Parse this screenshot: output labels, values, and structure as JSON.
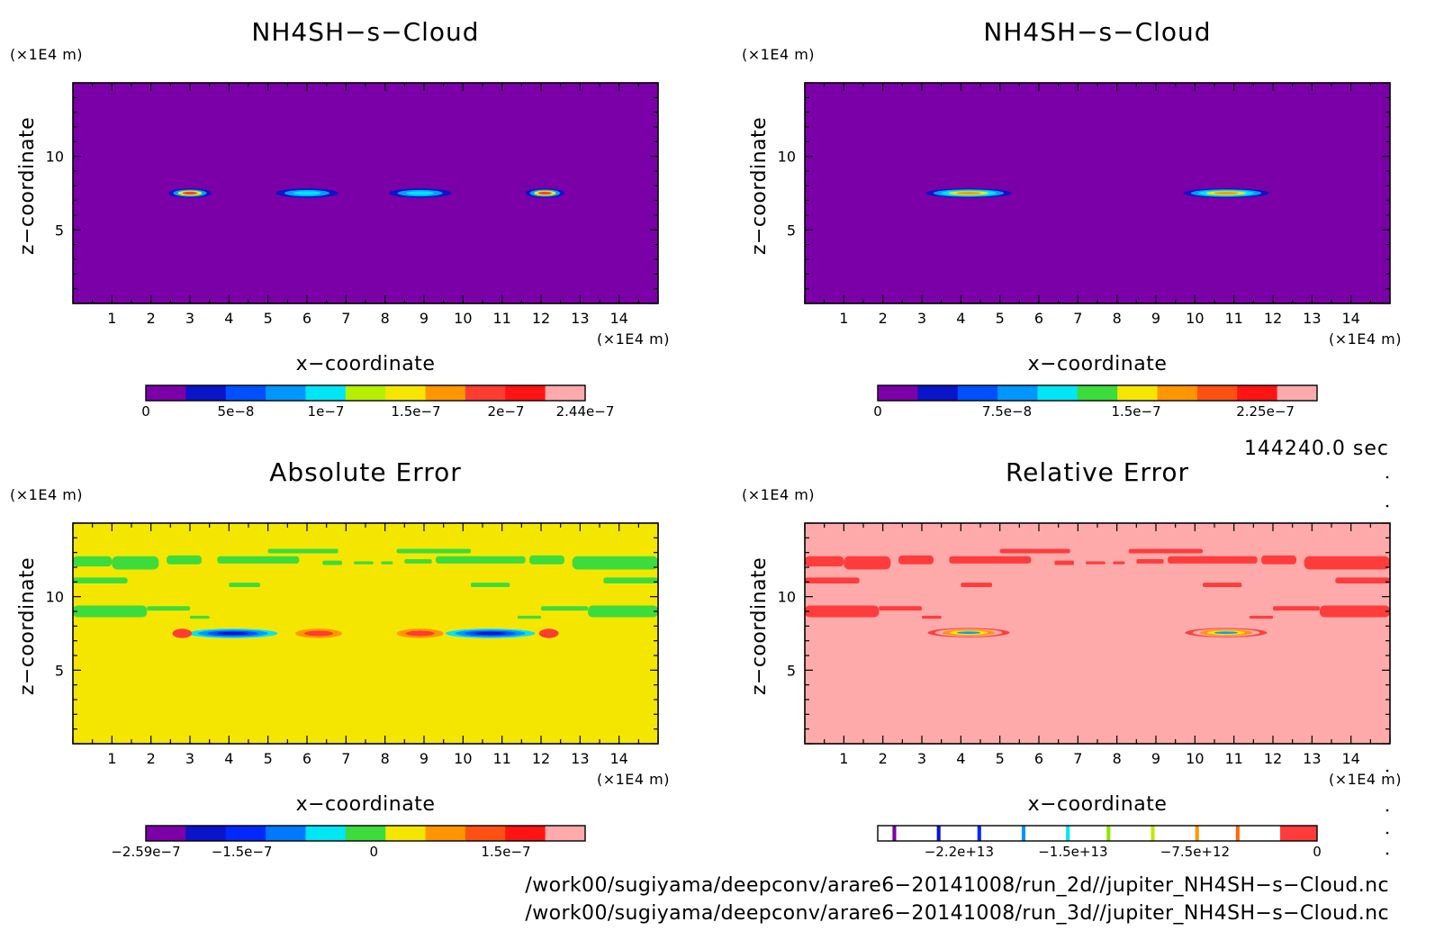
{
  "chart_data": [
    {
      "type": "heatmap",
      "title": "NH4SH−s−Cloud",
      "xlabel": "x−coordinate",
      "ylabel": "z−coordinate",
      "x_unit": "(×1E4 m)",
      "y_unit": "(×1E4 m)",
      "xlim": [
        0,
        15
      ],
      "ylim": [
        0,
        15
      ],
      "x_ticks": [
        1,
        2,
        3,
        4,
        5,
        6,
        7,
        8,
        9,
        10,
        11,
        12,
        13,
        14
      ],
      "y_ticks": [
        5,
        10
      ],
      "background_color": "#7b00a8",
      "features": [
        {
          "x": 3.0,
          "z": 7.5,
          "width": 1.1,
          "level_colors": [
            "#0a14c8",
            "#00a0ff",
            "#f5e600",
            "#ff3c32"
          ]
        },
        {
          "x": 6.0,
          "z": 7.5,
          "width": 1.6,
          "level_colors": [
            "#0a14c8",
            "#00a0ff",
            "#00e6f5"
          ]
        },
        {
          "x": 8.9,
          "z": 7.5,
          "width": 1.6,
          "level_colors": [
            "#0a14c8",
            "#00a0ff",
            "#00e6f5"
          ]
        },
        {
          "x": 12.1,
          "z": 7.5,
          "width": 1.0,
          "level_colors": [
            "#0a14c8",
            "#00a0ff",
            "#f5e600",
            "#ff3c32"
          ]
        }
      ],
      "colorbar": {
        "colors": [
          "#7b00a8",
          "#0a14c8",
          "#0050ff",
          "#0096ff",
          "#00e6f5",
          "#b4f000",
          "#f5e600",
          "#ff9600",
          "#ff3c32",
          "#ff1414",
          "#ffaaaa"
        ],
        "labels": [
          "0",
          "5e−8",
          "1e−7",
          "1.5e−7",
          "2e−7",
          "2.44e−7"
        ],
        "label_values": [
          0,
          5e-08,
          1e-07,
          1.5e-07,
          2e-07,
          2.44e-07
        ],
        "range": [
          0,
          2.44e-07
        ]
      }
    },
    {
      "type": "heatmap",
      "title": "NH4SH−s−Cloud",
      "xlabel": "x−coordinate",
      "ylabel": "z−coordinate",
      "x_unit": "(×1E4 m)",
      "y_unit": "(×1E4 m)",
      "xlim": [
        0,
        15
      ],
      "ylim": [
        0,
        15
      ],
      "x_ticks": [
        1,
        2,
        3,
        4,
        5,
        6,
        7,
        8,
        9,
        10,
        11,
        12,
        13,
        14
      ],
      "y_ticks": [
        5,
        10
      ],
      "background_color": "#7b00a8",
      "features": [
        {
          "x": 4.2,
          "z": 7.5,
          "width": 2.2,
          "level_colors": [
            "#0a14c8",
            "#00a0ff",
            "#00e6f5",
            "#f5e600",
            "#ff9600"
          ]
        },
        {
          "x": 10.8,
          "z": 7.5,
          "width": 2.2,
          "level_colors": [
            "#0a14c8",
            "#00a0ff",
            "#00e6f5",
            "#f5e600",
            "#ff9600"
          ]
        }
      ],
      "colorbar": {
        "colors": [
          "#7b00a8",
          "#0a14c8",
          "#0050ff",
          "#0096ff",
          "#00e6f5",
          "#3cdc3c",
          "#f5e600",
          "#ff9600",
          "#ff5014",
          "#ff1414",
          "#ffaaaa"
        ],
        "labels": [
          "0",
          "7.5e−8",
          "1.5e−7",
          "2.25e−7"
        ],
        "label_values": [
          0,
          7.5e-08,
          1.5e-07,
          2.25e-07
        ],
        "range": [
          0,
          2.55e-07
        ]
      }
    },
    {
      "type": "heatmap",
      "title": "Absolute Error",
      "xlabel": "x−coordinate",
      "ylabel": "z−coordinate",
      "x_unit": "(×1E4 m)",
      "y_unit": "(×1E4 m)",
      "xlim": [
        0,
        15
      ],
      "ylim": [
        0,
        15
      ],
      "x_ticks": [
        1,
        2,
        3,
        4,
        5,
        6,
        7,
        8,
        9,
        10,
        11,
        12,
        13,
        14
      ],
      "y_ticks": [
        5,
        10
      ],
      "background_color": "#f5e600",
      "patch_color": "#3cdc3c",
      "patches": [
        {
          "x0": 0.0,
          "x1": 1.0,
          "z": 12.4,
          "h": 0.7
        },
        {
          "x0": 1.0,
          "x1": 2.2,
          "z": 12.3,
          "h": 0.9
        },
        {
          "x0": 2.4,
          "x1": 3.3,
          "z": 12.5,
          "h": 0.6
        },
        {
          "x0": 3.7,
          "x1": 5.8,
          "z": 12.5,
          "h": 0.5
        },
        {
          "x0": 5.0,
          "x1": 6.8,
          "z": 13.1,
          "h": 0.3
        },
        {
          "x0": 6.4,
          "x1": 6.9,
          "z": 12.3,
          "h": 0.3
        },
        {
          "x0": 7.2,
          "x1": 7.7,
          "z": 12.3,
          "h": 0.2
        },
        {
          "x0": 7.9,
          "x1": 8.2,
          "z": 12.3,
          "h": 0.2
        },
        {
          "x0": 8.3,
          "x1": 10.2,
          "z": 13.1,
          "h": 0.3
        },
        {
          "x0": 8.5,
          "x1": 9.2,
          "z": 12.4,
          "h": 0.3
        },
        {
          "x0": 9.3,
          "x1": 11.6,
          "z": 12.5,
          "h": 0.5
        },
        {
          "x0": 11.7,
          "x1": 12.6,
          "z": 12.5,
          "h": 0.6
        },
        {
          "x0": 12.8,
          "x1": 15.0,
          "z": 12.3,
          "h": 0.9
        },
        {
          "x0": 0.0,
          "x1": 1.4,
          "z": 11.1,
          "h": 0.4
        },
        {
          "x0": 4.0,
          "x1": 4.8,
          "z": 10.8,
          "h": 0.3
        },
        {
          "x0": 10.2,
          "x1": 11.2,
          "z": 10.8,
          "h": 0.3
        },
        {
          "x0": 13.6,
          "x1": 15.0,
          "z": 11.1,
          "h": 0.4
        },
        {
          "x0": 0.0,
          "x1": 1.9,
          "z": 9.0,
          "h": 0.8
        },
        {
          "x0": 1.9,
          "x1": 3.0,
          "z": 9.2,
          "h": 0.3
        },
        {
          "x0": 12.0,
          "x1": 13.2,
          "z": 9.2,
          "h": 0.3
        },
        {
          "x0": 13.2,
          "x1": 15.0,
          "z": 9.0,
          "h": 0.8
        },
        {
          "x0": 3.0,
          "x1": 3.5,
          "z": 8.6,
          "h": 0.2
        },
        {
          "x0": 11.4,
          "x1": 12.0,
          "z": 8.6,
          "h": 0.2
        }
      ],
      "features": [
        {
          "x": 4.1,
          "z": 7.5,
          "width": 2.3,
          "level_colors": [
            "#00e6f5",
            "#0096ff",
            "#0050ff",
            "#0a14c8"
          ]
        },
        {
          "x": 10.7,
          "z": 7.5,
          "width": 2.3,
          "level_colors": [
            "#00e6f5",
            "#0096ff",
            "#0050ff",
            "#0a14c8"
          ]
        },
        {
          "x": 2.8,
          "z": 7.5,
          "width": 0.5,
          "level_colors": [
            "#ff3c32"
          ]
        },
        {
          "x": 6.3,
          "z": 7.5,
          "width": 1.2,
          "level_colors": [
            "#ff9600",
            "#ff3c32"
          ]
        },
        {
          "x": 8.9,
          "z": 7.5,
          "width": 1.2,
          "level_colors": [
            "#ff9600",
            "#ff3c32"
          ]
        },
        {
          "x": 12.2,
          "z": 7.5,
          "width": 0.5,
          "level_colors": [
            "#ff3c32"
          ]
        }
      ],
      "colorbar": {
        "colors": [
          "#7b00a8",
          "#0a14c8",
          "#0028ff",
          "#0078ff",
          "#00e6f5",
          "#3cdc3c",
          "#f5e600",
          "#ff9600",
          "#ff5014",
          "#ff1414",
          "#ffaaaa"
        ],
        "labels": [
          "−2.59e−7",
          "−1.5e−7",
          "0",
          "1.5e−7"
        ],
        "label_values": [
          -2.59e-07,
          -1.5e-07,
          0,
          1.5e-07
        ],
        "range": [
          -2.59e-07,
          2.4e-07
        ]
      }
    },
    {
      "type": "heatmap",
      "title": "Relative Error",
      "xlabel": "x−coordinate",
      "ylabel": "z−coordinate",
      "x_unit": "(×1E4 m)",
      "y_unit": "(×1E4 m)",
      "xlim": [
        0,
        15
      ],
      "ylim": [
        0,
        15
      ],
      "x_ticks": [
        1,
        2,
        3,
        4,
        5,
        6,
        7,
        8,
        9,
        10,
        11,
        12,
        13,
        14
      ],
      "y_ticks": [
        5,
        10
      ],
      "background_color": "#ffaaaa",
      "patch_color": "#ff3c3c",
      "patches": [
        {
          "x0": 0.0,
          "x1": 1.0,
          "z": 12.4,
          "h": 0.7
        },
        {
          "x0": 1.0,
          "x1": 2.2,
          "z": 12.3,
          "h": 0.9
        },
        {
          "x0": 2.4,
          "x1": 3.3,
          "z": 12.5,
          "h": 0.6
        },
        {
          "x0": 3.7,
          "x1": 5.8,
          "z": 12.5,
          "h": 0.5
        },
        {
          "x0": 5.0,
          "x1": 6.8,
          "z": 13.1,
          "h": 0.3
        },
        {
          "x0": 6.4,
          "x1": 6.9,
          "z": 12.3,
          "h": 0.3
        },
        {
          "x0": 7.2,
          "x1": 7.7,
          "z": 12.3,
          "h": 0.2
        },
        {
          "x0": 7.9,
          "x1": 8.2,
          "z": 12.3,
          "h": 0.2
        },
        {
          "x0": 8.3,
          "x1": 10.2,
          "z": 13.1,
          "h": 0.3
        },
        {
          "x0": 8.5,
          "x1": 9.2,
          "z": 12.4,
          "h": 0.3
        },
        {
          "x0": 9.3,
          "x1": 11.6,
          "z": 12.5,
          "h": 0.5
        },
        {
          "x0": 11.7,
          "x1": 12.6,
          "z": 12.5,
          "h": 0.6
        },
        {
          "x0": 12.8,
          "x1": 15.0,
          "z": 12.3,
          "h": 0.9
        },
        {
          "x0": 0.0,
          "x1": 1.4,
          "z": 11.1,
          "h": 0.4
        },
        {
          "x0": 4.0,
          "x1": 4.8,
          "z": 10.8,
          "h": 0.3
        },
        {
          "x0": 10.2,
          "x1": 11.2,
          "z": 10.8,
          "h": 0.3
        },
        {
          "x0": 13.6,
          "x1": 15.0,
          "z": 11.1,
          "h": 0.4
        },
        {
          "x0": 0.0,
          "x1": 1.9,
          "z": 9.0,
          "h": 0.8
        },
        {
          "x0": 1.9,
          "x1": 3.0,
          "z": 9.2,
          "h": 0.3
        },
        {
          "x0": 12.0,
          "x1": 13.2,
          "z": 9.2,
          "h": 0.3
        },
        {
          "x0": 13.2,
          "x1": 15.0,
          "z": 9.0,
          "h": 0.8
        },
        {
          "x0": 3.0,
          "x1": 3.5,
          "z": 8.6,
          "h": 0.2
        },
        {
          "x0": 11.4,
          "x1": 12.0,
          "z": 8.6,
          "h": 0.2
        }
      ],
      "features": [
        {
          "x": 4.2,
          "z": 7.55,
          "width": 2.1,
          "level_colors": [
            "#ff3c3c",
            "#ffaaaa",
            "#ff9600",
            "#f5e600",
            "#00a0ff"
          ]
        },
        {
          "x": 10.8,
          "z": 7.55,
          "width": 2.1,
          "level_colors": [
            "#ff3c3c",
            "#ffaaaa",
            "#ff9600",
            "#f5e600",
            "#00a0ff"
          ]
        }
      ],
      "colorbar": {
        "colors": [
          "#ffffff",
          "#7b00a8",
          "#ffffff",
          "#0a14c8",
          "#ffffff",
          "#0028ff",
          "#ffffff",
          "#0096ff",
          "#ffffff",
          "#00e6f5",
          "#ffffff",
          "#8ce600",
          "#ffffff",
          "#c8e600",
          "#ffffff",
          "#ff9600",
          "#ffffff",
          "#ff6a00",
          "#ffffff",
          "#ff3c3c"
        ],
        "widths": [
          4,
          1,
          11,
          1,
          10,
          1,
          11,
          1,
          11,
          1,
          10,
          1,
          11,
          1,
          11,
          1,
          10,
          1,
          11,
          10
        ],
        "labels": [
          "−2.2e+13",
          "−1.5e+13",
          "−7.5e+12",
          "0"
        ],
        "label_values": [
          -22000000000000.0,
          -15000000000000.0,
          -7500000000000.0,
          0
        ],
        "range": [
          -27000000000000.0,
          0
        ]
      }
    }
  ],
  "time_label": "144240.0 sec",
  "footer_lines": [
    "/work00/sugiyama/deepconv/arare6−20141008/run_2d//jupiter_NH4SH−s−Cloud.nc",
    "/work00/sugiyama/deepconv/arare6−20141008/run_3d//jupiter_NH4SH−s−Cloud.nc"
  ]
}
